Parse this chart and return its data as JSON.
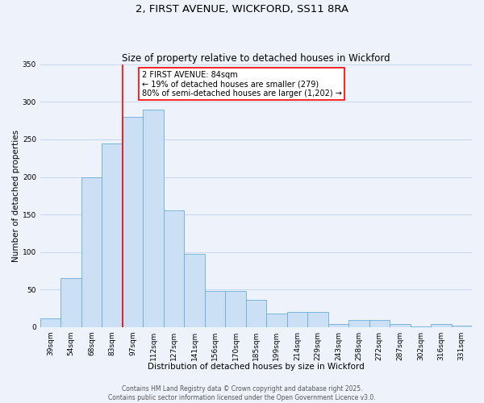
{
  "title": "2, FIRST AVENUE, WICKFORD, SS11 8RA",
  "subtitle": "Size of property relative to detached houses in Wickford",
  "xlabel": "Distribution of detached houses by size in Wickford",
  "ylabel": "Number of detached properties",
  "categories": [
    "39sqm",
    "54sqm",
    "68sqm",
    "83sqm",
    "97sqm",
    "112sqm",
    "127sqm",
    "141sqm",
    "156sqm",
    "170sqm",
    "185sqm",
    "199sqm",
    "214sqm",
    "229sqm",
    "243sqm",
    "258sqm",
    "272sqm",
    "287sqm",
    "302sqm",
    "316sqm",
    "331sqm"
  ],
  "values": [
    12,
    65,
    200,
    245,
    280,
    290,
    155,
    98,
    48,
    48,
    36,
    18,
    20,
    20,
    4,
    10,
    10,
    4,
    1,
    4,
    2
  ],
  "bar_color": "#cce0f5",
  "bar_edge_color": "#6aaed6",
  "vline_index": 3,
  "vline_color": "red",
  "annotation_box_text": "2 FIRST AVENUE: 84sqm\n← 19% of detached houses are smaller (279)\n80% of semi-detached houses are larger (1,202) →",
  "ylim": [
    0,
    350
  ],
  "yticks": [
    0,
    50,
    100,
    150,
    200,
    250,
    300,
    350
  ],
  "background_color": "#eef3fb",
  "grid_color": "#c8d8ee",
  "footer_line1": "Contains HM Land Registry data © Crown copyright and database right 2025.",
  "footer_line2": "Contains public sector information licensed under the Open Government Licence v3.0.",
  "title_fontsize": 9.5,
  "subtitle_fontsize": 8.5,
  "axis_label_fontsize": 7.5,
  "tick_fontsize": 6.5,
  "annotation_fontsize": 7,
  "footer_fontsize": 5.5
}
